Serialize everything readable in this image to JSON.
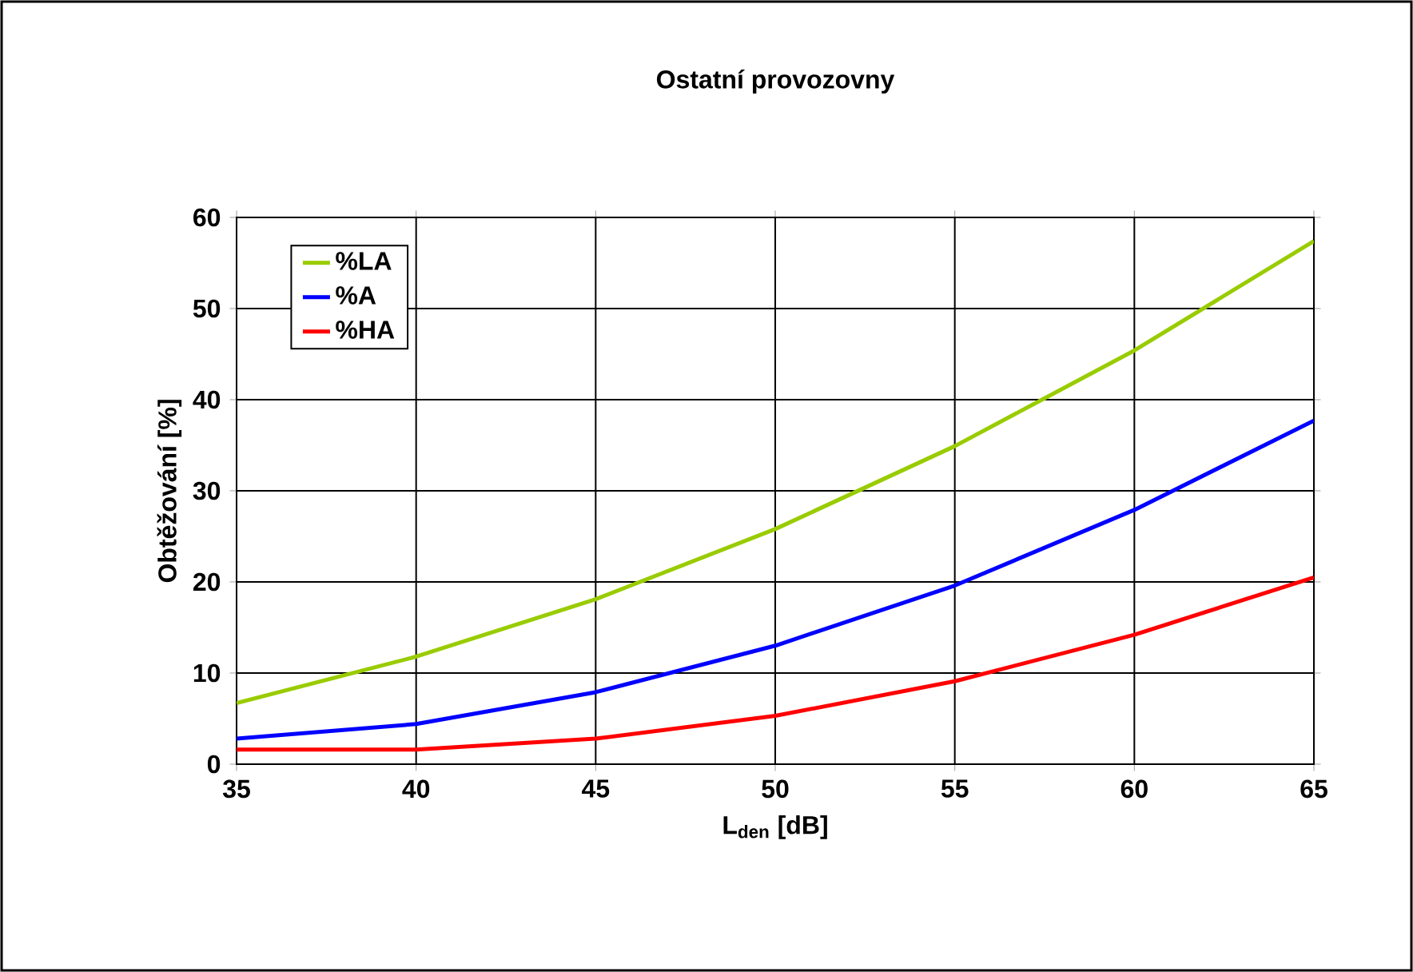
{
  "chart_data": {
    "type": "line",
    "title": "Ostatní provozovny",
    "xlabel": "L$_{den}$ [dB]",
    "ylabel": "Obtěžování [%]",
    "x": [
      35,
      40,
      45,
      50,
      55,
      60,
      65
    ],
    "series": [
      {
        "name": "%LA",
        "color": "#99cc00",
        "values": [
          6.7,
          11.8,
          18.1,
          25.8,
          34.9,
          45.4,
          57.4
        ]
      },
      {
        "name": "%A",
        "color": "#0000ff",
        "values": [
          2.8,
          4.4,
          7.9,
          13.0,
          19.6,
          27.9,
          37.7
        ]
      },
      {
        "name": "%HA",
        "color": "#ff0000",
        "values": [
          1.6,
          1.6,
          2.8,
          5.3,
          9.1,
          14.2,
          20.5
        ]
      }
    ],
    "xlim": [
      35,
      65
    ],
    "xticks": [
      35,
      40,
      45,
      50,
      55,
      60,
      65
    ],
    "ylim": [
      0,
      60
    ],
    "yticks": [
      0,
      10,
      20,
      30,
      40,
      50,
      60
    ],
    "grid": true,
    "legend": "top left",
    "marker": "none",
    "line_style": "solid"
  }
}
